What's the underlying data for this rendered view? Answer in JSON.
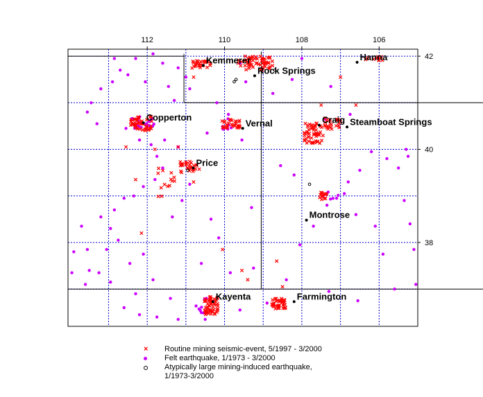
{
  "map": {
    "lon_ticks": [
      "112",
      "110",
      "108",
      "106"
    ],
    "lat_ticks": [
      "42",
      "40",
      "38"
    ],
    "cities": [
      {
        "name": "Kemmerer",
        "lon": 110.55,
        "lat": 41.8
      },
      {
        "name": "Rock Springs",
        "lon": 109.22,
        "lat": 41.58
      },
      {
        "name": "Hanna",
        "lon": 106.57,
        "lat": 41.87
      },
      {
        "name": "Copperton",
        "lon": 112.1,
        "lat": 40.57
      },
      {
        "name": "Vernal",
        "lon": 109.53,
        "lat": 40.45
      },
      {
        "name": "Craig",
        "lon": 107.55,
        "lat": 40.52
      },
      {
        "name": "Steamboat Springs",
        "lon": 106.83,
        "lat": 40.48
      },
      {
        "name": "Price",
        "lon": 110.81,
        "lat": 39.6
      },
      {
        "name": "Montrose",
        "lon": 107.88,
        "lat": 38.48
      },
      {
        "name": "Kayenta",
        "lon": 110.3,
        "lat": 36.73
      },
      {
        "name": "Farmington",
        "lon": 108.2,
        "lat": 36.73
      }
    ],
    "colors": {
      "grid": "#0000cc",
      "mining_event": "#ff0000",
      "felt_earthquake": "#cc00ff",
      "large_mining_earthquake": "#000000"
    }
  },
  "legend": {
    "mining": "Routine mining seismic-event, 5/1997 - 3/2000",
    "felt": "Felt earthquake, 1/1973 - 3/2000",
    "large_line1": "Atypically large mining-induced earthquake,",
    "large_line2": "1/1973-3/2000"
  }
}
